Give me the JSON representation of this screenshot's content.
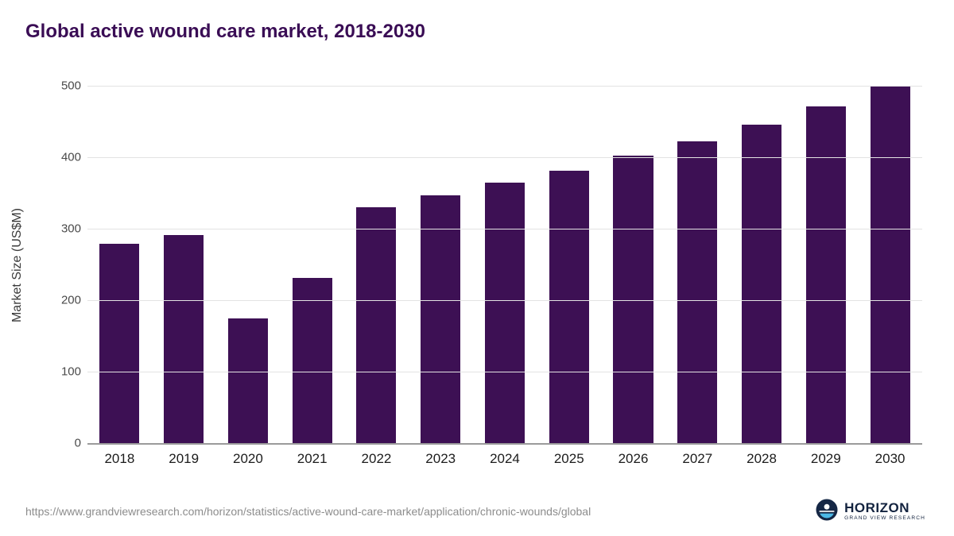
{
  "title": "Global active wound care market, 2018-2030",
  "colors": {
    "bar": "#3d1054",
    "title": "#3a0d55",
    "gridline": "#e3e3e3",
    "axis_line": "#9b9b9b",
    "logo_navy": "#152745",
    "logo_blue": "#4cb9e7"
  },
  "chart_data": {
    "type": "bar",
    "title": "Global active wound care market, 2018-2030",
    "xlabel": "",
    "ylabel": "Market Size (US$M)",
    "categories": [
      "2018",
      "2019",
      "2020",
      "2021",
      "2022",
      "2023",
      "2024",
      "2025",
      "2026",
      "2027",
      "2028",
      "2029",
      "2030"
    ],
    "values": [
      279,
      291,
      175,
      231,
      330,
      347,
      364,
      381,
      402,
      422,
      446,
      471,
      499
    ],
    "ylim": [
      0,
      500
    ],
    "yticks": [
      0,
      100,
      200,
      300,
      400,
      500
    ],
    "grid": "horizontal",
    "legend": "none"
  },
  "footer": {
    "source_url": "https://www.grandviewresearch.com/horizon/statistics/active-wound-care-market/application/chronic-wounds/global",
    "logo_title": "HORIZON",
    "logo_subtitle": "GRAND VIEW RESEARCH"
  }
}
